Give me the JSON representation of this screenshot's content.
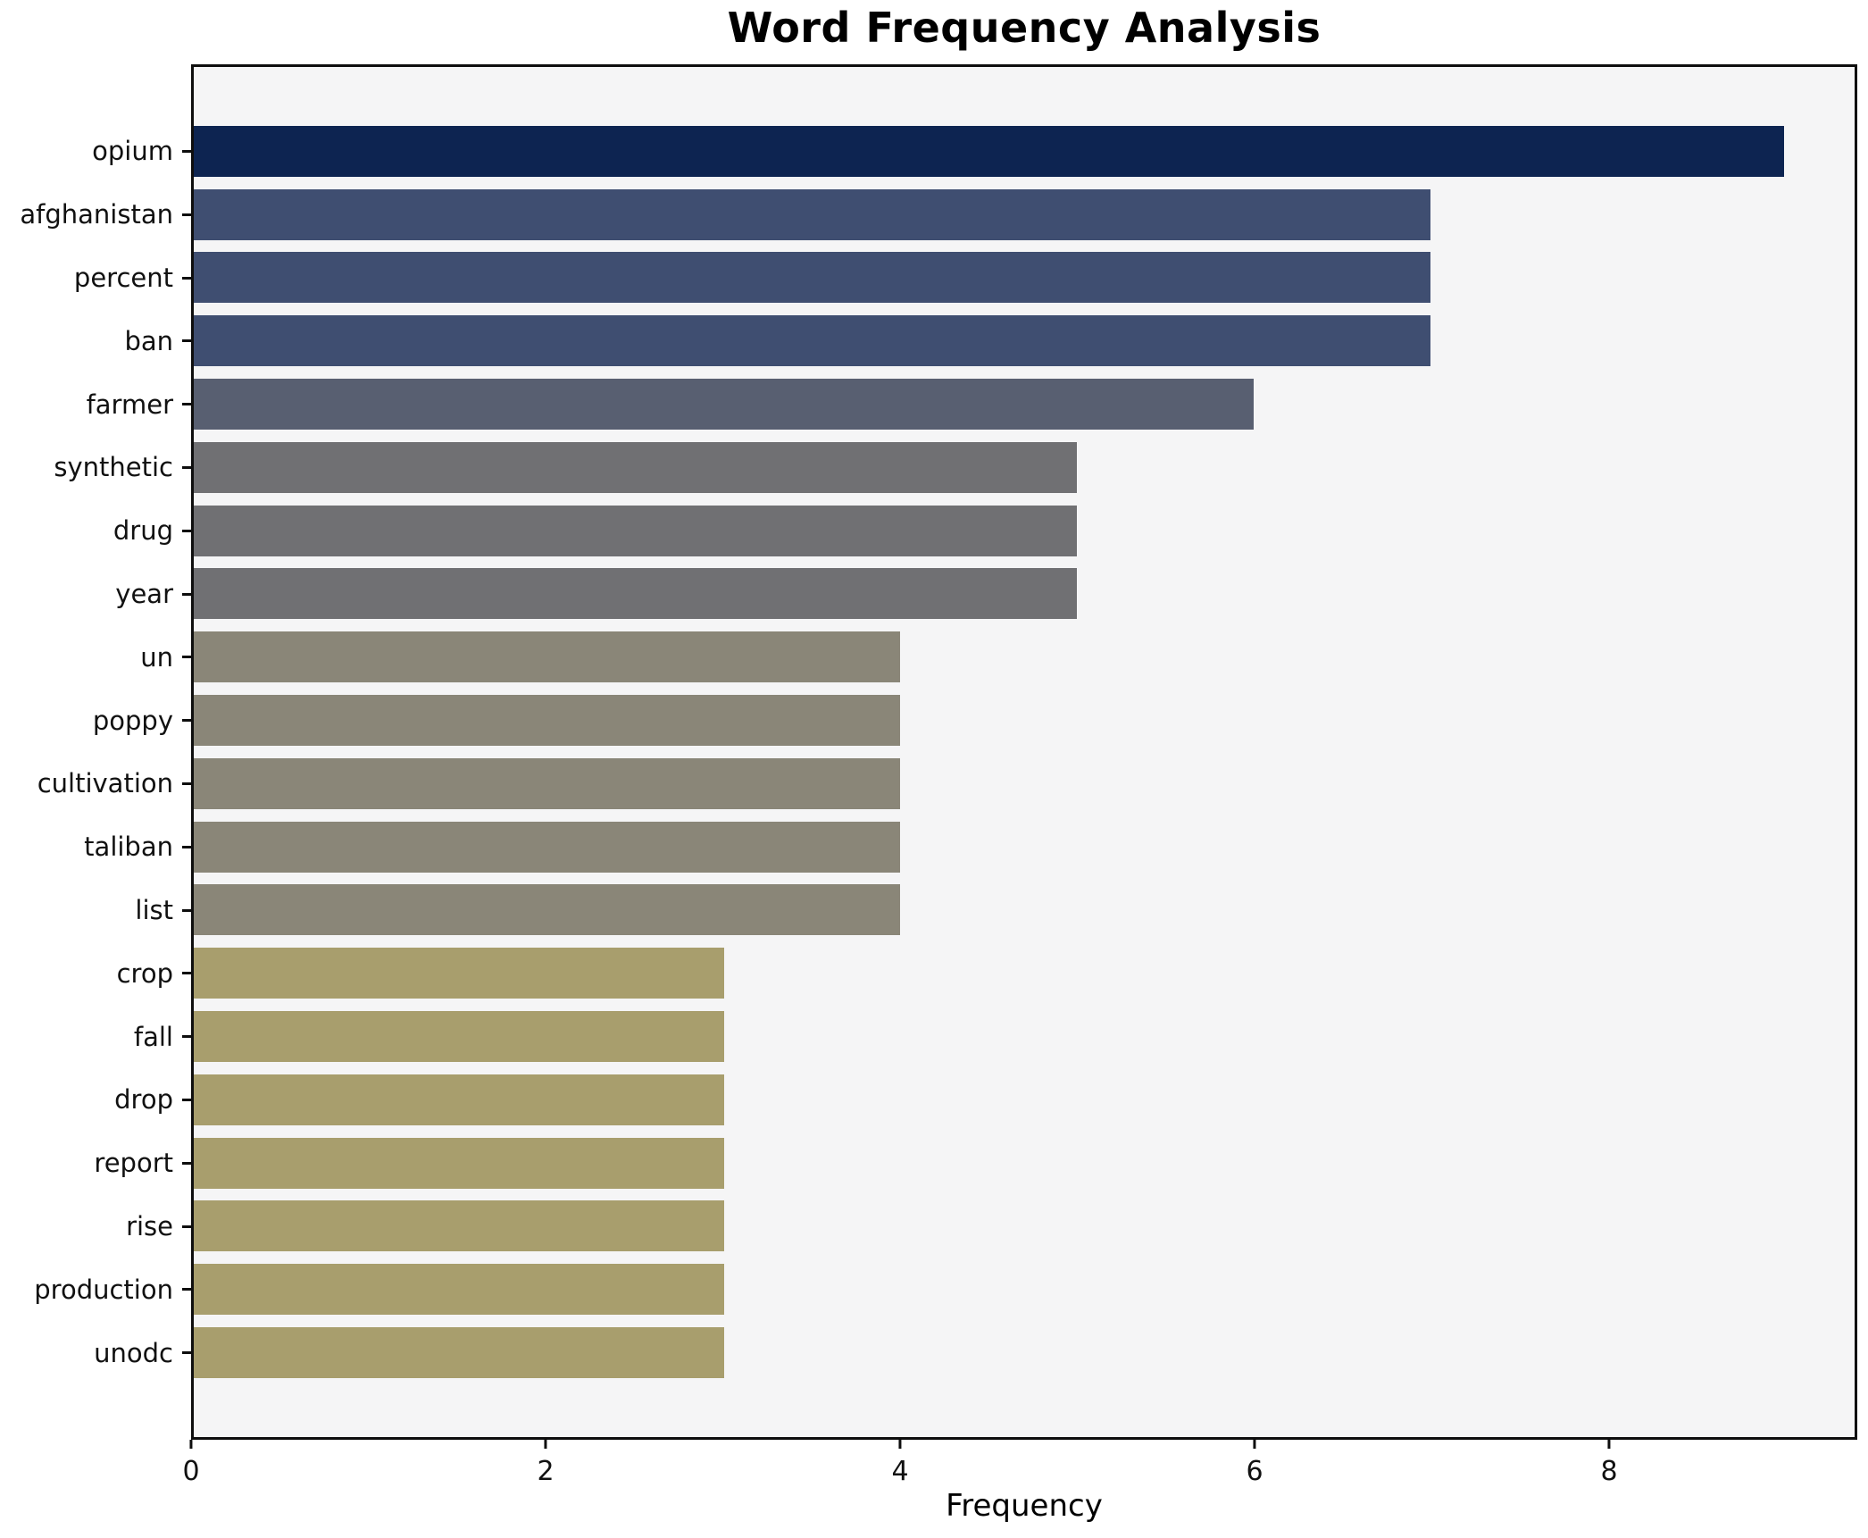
{
  "chart_data": {
    "type": "bar",
    "orientation": "horizontal",
    "title": "Word Frequency Analysis",
    "xlabel": "Frequency",
    "ylabel": "",
    "categories": [
      "opium",
      "afghanistan",
      "percent",
      "ban",
      "farmer",
      "synthetic",
      "drug",
      "year",
      "un",
      "poppy",
      "cultivation",
      "taliban",
      "list",
      "crop",
      "fall",
      "drop",
      "report",
      "rise",
      "production",
      "unodc"
    ],
    "values": [
      9,
      7,
      7,
      7,
      6,
      5,
      5,
      5,
      4,
      4,
      4,
      4,
      4,
      3,
      3,
      3,
      3,
      3,
      3,
      3
    ],
    "bar_colors": [
      "#0d2451",
      "#3f4e71",
      "#3f4e71",
      "#3f4e71",
      "#585f71",
      "#707073",
      "#707073",
      "#707073",
      "#8a8678",
      "#8a8678",
      "#8a8678",
      "#8a8678",
      "#8a8678",
      "#a89e6d",
      "#a89e6d",
      "#a89e6d",
      "#a89e6d",
      "#a89e6d",
      "#a89e6d",
      "#a89e6d"
    ],
    "x_ticks": [
      "0",
      "2",
      "4",
      "6",
      "8"
    ],
    "x_tick_values": [
      0,
      2,
      4,
      6,
      8
    ],
    "xlim": [
      0,
      9.4
    ],
    "grid": false,
    "legend": null,
    "plot_background": "#f5f5f6",
    "figure_background": "#ffffff",
    "spine_color": "#0e0e0e",
    "label_color": "#111111"
  }
}
